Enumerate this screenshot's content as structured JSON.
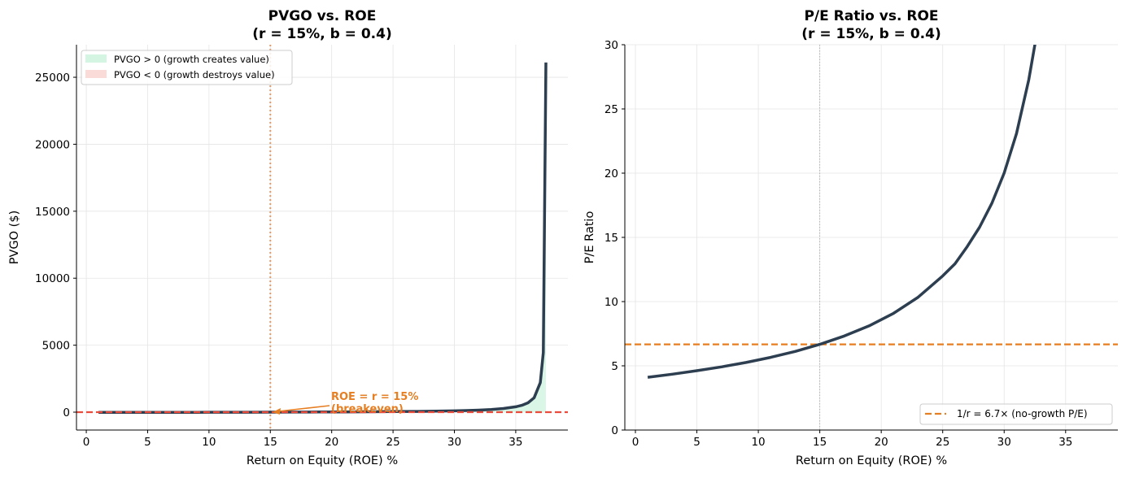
{
  "chart_data": [
    {
      "type": "line",
      "title": "PVGO vs. ROE",
      "subtitle": "(r = 15%, b = 0.4)",
      "xlabel": "Return on Equity (ROE) %",
      "ylabel": "PVGO ($)",
      "xlim": [
        -0.8,
        39.25
      ],
      "ylim": [
        -1335,
        27430
      ],
      "xticks": [
        0,
        5,
        10,
        15,
        20,
        25,
        30,
        35
      ],
      "yticks": [
        0,
        5000,
        10000,
        15000,
        20000,
        25000
      ],
      "grid": true,
      "legend_position": "upper-left",
      "legend": [
        {
          "label": "PVGO > 0 (growth creates value)",
          "color": "#d5f5e3"
        },
        {
          "label": "PVGO < 0 (growth destroys value)",
          "color": "#fadbd8"
        }
      ],
      "series": {
        "x": [
          1,
          3,
          5,
          7,
          9,
          11,
          13,
          15,
          17,
          19,
          21,
          23,
          25,
          27,
          29,
          30,
          31,
          32,
          33,
          34,
          35,
          35.5,
          36,
          36.5,
          37,
          37.25,
          37.46
        ],
        "y": [
          -19.2,
          -17.4,
          -15.4,
          -13.1,
          -10.5,
          -7.5,
          -4.1,
          0,
          4.9,
          10.8,
          18.2,
          27.6,
          40,
          57.1,
          82.4,
          100,
          123.1,
          154.5,
          200,
          271.4,
          400,
          512.5,
          700,
          1075,
          2200,
          4450,
          26100
        ],
        "color": "#2c3e50"
      },
      "hline": {
        "y": 0,
        "color": "#e74c3c",
        "style": "dashed"
      },
      "vline": {
        "x": 15,
        "color": "#e59866",
        "style": "dotted"
      },
      "annotation": {
        "lines": [
          "ROE = r = 15%",
          "(breakeven)"
        ],
        "point": [
          15,
          0
        ],
        "color": "#e67e22"
      }
    },
    {
      "type": "line",
      "title": "P/E Ratio vs. ROE",
      "subtitle": "(r = 15%, b = 0.4)",
      "xlabel": "Return on Equity (ROE) %",
      "ylabel": "P/E Ratio",
      "xlim": [
        -0.86,
        39.25
      ],
      "ylim": [
        0,
        30
      ],
      "xticks": [
        0,
        5,
        10,
        15,
        20,
        25,
        30,
        35
      ],
      "yticks": [
        0,
        5,
        10,
        15,
        20,
        25,
        30
      ],
      "grid": true,
      "legend_position": "lower-right",
      "legend": [
        {
          "label": "1/r = 6.7× (no-growth P/E)",
          "color": "#e67e22"
        }
      ],
      "series": {
        "x": [
          1,
          3,
          5,
          7,
          9,
          11,
          13,
          15,
          17,
          19,
          21,
          23,
          25,
          26,
          27,
          28,
          29,
          30,
          31,
          32,
          32.5,
          33
        ],
        "y": [
          4.11,
          4.35,
          4.62,
          4.92,
          5.26,
          5.66,
          6.12,
          6.67,
          7.32,
          8.11,
          9.09,
          10.34,
          12.0,
          12.94,
          14.29,
          15.79,
          17.65,
          20.0,
          23.08,
          27.27,
          30.0,
          33.33
        ],
        "color": "#2c3e50"
      },
      "hline": {
        "y": 6.67,
        "color": "#e67e22",
        "style": "dashed"
      },
      "vline": {
        "x": 15,
        "color": "#aaaaaa",
        "style": "dotted"
      }
    }
  ]
}
